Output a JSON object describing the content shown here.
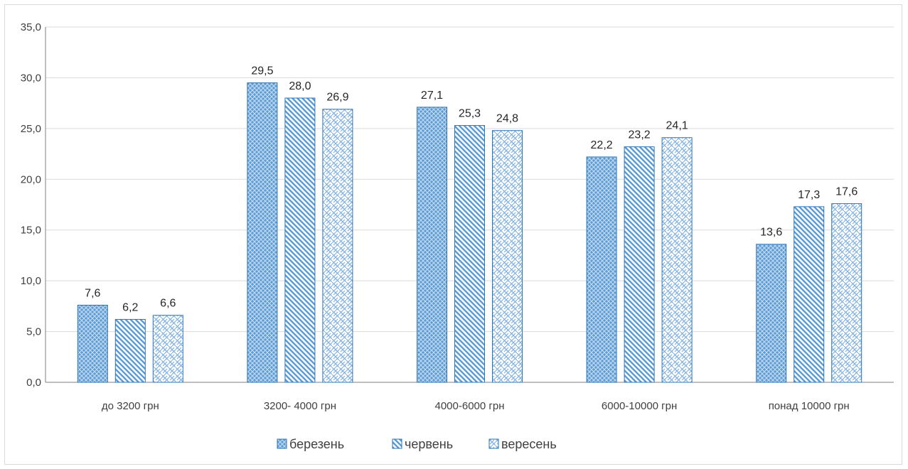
{
  "chart_data": {
    "type": "bar",
    "title": "",
    "xlabel": "",
    "ylabel": "",
    "ylim": [
      0,
      35
    ],
    "y_ticks": [
      "0,0",
      "5,0",
      "10,0",
      "15,0",
      "20,0",
      "25,0",
      "30,0",
      "35,0"
    ],
    "grid": true,
    "legend_position": "bottom",
    "categories": [
      "до 3200 грн",
      "3200- 4000 грн",
      "4000-6000 грн",
      "6000-10000 грн",
      "понад  10000 грн"
    ],
    "series": [
      {
        "name": "березень",
        "values": [
          7.6,
          29.5,
          27.1,
          22.2,
          13.6
        ],
        "labels": [
          "7,6",
          "29,5",
          "27,1",
          "22,2",
          "13,6"
        ],
        "pattern": "crosshatch"
      },
      {
        "name": "червень",
        "values": [
          6.2,
          28.0,
          25.3,
          23.2,
          17.3
        ],
        "labels": [
          "6,2",
          "28,0",
          "25,3",
          "23,2",
          "17,3"
        ],
        "pattern": "diagonal"
      },
      {
        "name": "вересень",
        "values": [
          6.6,
          26.9,
          24.8,
          24.1,
          17.6
        ],
        "labels": [
          "6,6",
          "26,9",
          "24,8",
          "24,1",
          "17,6"
        ],
        "pattern": "weave"
      }
    ]
  },
  "colors": {
    "bar_fill": "#5b9bd5",
    "bar_light": "#bdd7ee",
    "bar_border": "#2e75b6",
    "grid": "#d9d9d9",
    "axis": "#7f7f7f"
  }
}
